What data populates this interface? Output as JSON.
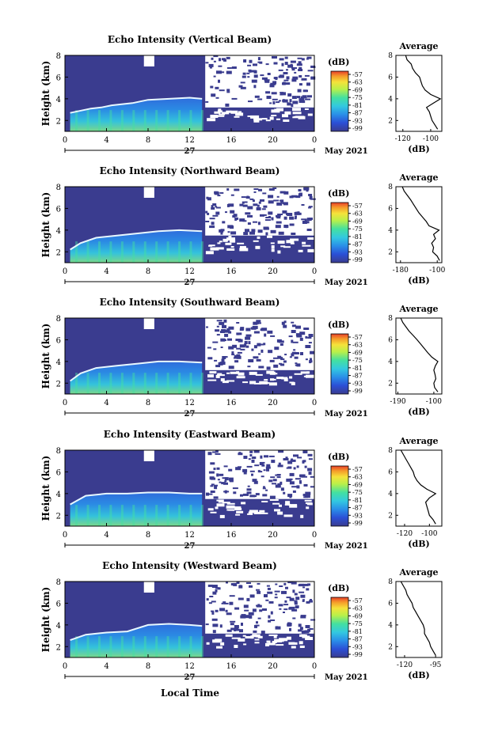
{
  "figure": {
    "xlabel": "Local Time",
    "date_label": "May 2021",
    "day_label": "27",
    "colorbar_unit": "(dB)",
    "colorbar_ticks": [
      "-57",
      "-63",
      "-69",
      "-75",
      "-81",
      "-87",
      "-93",
      "-99"
    ],
    "colorscale": [
      "#3a3c8f",
      "#2b4fd6",
      "#2a8fe8",
      "#33c9e0",
      "#44e0a0",
      "#b8f04a",
      "#f5e23a",
      "#f59a2a",
      "#e8402a"
    ],
    "background_color": "#3a3c8f"
  },
  "chart_data": [
    {
      "type": "heatmap",
      "title": "Echo Intensity (Vertical Beam)",
      "ylabel": "Height (km)",
      "x_ticks": [
        "0",
        "4",
        "8",
        "12",
        "16",
        "20",
        "0"
      ],
      "y_ticks": [
        "2",
        "4",
        "6",
        "8"
      ],
      "xlim": [
        0,
        24
      ],
      "ylim": [
        1,
        8
      ],
      "layer_height_km": [
        [
          0.5,
          2.7
        ],
        [
          2.5,
          3.1
        ],
        [
          3.5,
          3.2
        ],
        [
          4.5,
          3.4
        ],
        [
          6.5,
          3.6
        ],
        [
          8,
          3.9
        ],
        [
          10,
          4.0
        ],
        [
          12,
          4.1
        ],
        [
          13.2,
          4.0
        ]
      ],
      "average_profile": {
        "title": "Average",
        "xlabel": "(dB)",
        "x_ticks": [
          "-120",
          "-100"
        ],
        "y_ticks": [
          "2",
          "4",
          "6",
          "8"
        ],
        "xlim": [
          -125,
          -92
        ],
        "ylim": [
          1,
          8
        ],
        "height_km": [
          1.2,
          1.6,
          2.0,
          2.4,
          2.8,
          3.2,
          3.6,
          4.0,
          4.4,
          4.8,
          5.2,
          5.6,
          6.0,
          6.4,
          6.8,
          7.2,
          7.6,
          8.0
        ],
        "db": [
          -95,
          -97,
          -99,
          -100,
          -101,
          -103,
          -98,
          -93,
          -100,
          -104,
          -106,
          -107,
          -108,
          -111,
          -113,
          -114,
          -117,
          -118
        ]
      }
    },
    {
      "type": "heatmap",
      "title": "Echo Intensity (Northward Beam)",
      "ylabel": "Height (km)",
      "x_ticks": [
        "0",
        "4",
        "8",
        "12",
        "16",
        "20",
        "0"
      ],
      "y_ticks": [
        "2",
        "4",
        "6",
        "8"
      ],
      "xlim": [
        0,
        24
      ],
      "ylim": [
        1,
        8
      ],
      "layer_height_km": [
        [
          0.5,
          2.2
        ],
        [
          1.5,
          2.8
        ],
        [
          3,
          3.3
        ],
        [
          5,
          3.5
        ],
        [
          7,
          3.7
        ],
        [
          9,
          3.9
        ],
        [
          11,
          4.0
        ],
        [
          13.2,
          3.9
        ]
      ],
      "average_profile": {
        "title": "Average",
        "xlabel": "(dB)",
        "x_ticks": [
          "-180",
          "-100"
        ],
        "y_ticks": [
          "2",
          "4",
          "6",
          "8"
        ],
        "xlim": [
          -190,
          -90
        ],
        "ylim": [
          1,
          8
        ],
        "height_km": [
          1.2,
          1.6,
          2.0,
          2.4,
          2.8,
          3.2,
          3.6,
          4.0,
          4.4,
          4.8,
          5.2,
          5.6,
          6.0,
          6.4,
          6.8,
          7.2,
          7.6,
          8.0
        ],
        "db": [
          -95,
          -100,
          -110,
          -108,
          -112,
          -104,
          -108,
          -96,
          -118,
          -124,
          -132,
          -140,
          -146,
          -152,
          -158,
          -165,
          -172,
          -176
        ]
      }
    },
    {
      "type": "heatmap",
      "title": "Echo Intensity (Southward Beam)",
      "ylabel": "Height (km)",
      "x_ticks": [
        "0",
        "4",
        "8",
        "12",
        "16",
        "20",
        "0"
      ],
      "y_ticks": [
        "2",
        "4",
        "6",
        "8"
      ],
      "xlim": [
        0,
        24
      ],
      "ylim": [
        1,
        8
      ],
      "layer_height_km": [
        [
          0.5,
          2.2
        ],
        [
          1.5,
          2.9
        ],
        [
          3,
          3.4
        ],
        [
          5,
          3.6
        ],
        [
          7,
          3.8
        ],
        [
          9,
          4.0
        ],
        [
          11,
          4.0
        ],
        [
          13.2,
          3.9
        ]
      ],
      "average_profile": {
        "title": "Average",
        "xlabel": "(dB)",
        "x_ticks": [
          "-190",
          "-100"
        ],
        "y_ticks": [
          "2",
          "4",
          "6",
          "8"
        ],
        "xlim": [
          -195,
          -80
        ],
        "ylim": [
          1,
          8
        ],
        "height_km": [
          1.2,
          1.6,
          2.0,
          2.4,
          2.8,
          3.2,
          3.6,
          4.0,
          4.4,
          4.8,
          5.2,
          5.6,
          6.0,
          6.4,
          6.8,
          7.2,
          7.6,
          8.0
        ],
        "db": [
          -90,
          -98,
          -100,
          -95,
          -97,
          -100,
          -96,
          -90,
          -105,
          -115,
          -124,
          -133,
          -142,
          -152,
          -162,
          -170,
          -178,
          -183
        ]
      }
    },
    {
      "type": "heatmap",
      "title": "Echo Intensity (Eastward Beam)",
      "ylabel": "Height (km)",
      "x_ticks": [
        "0",
        "4",
        "8",
        "12",
        "16",
        "20",
        "0"
      ],
      "y_ticks": [
        "2",
        "4",
        "6",
        "8"
      ],
      "xlim": [
        0,
        24
      ],
      "ylim": [
        1,
        8
      ],
      "layer_height_km": [
        [
          0.5,
          3.0
        ],
        [
          2,
          3.8
        ],
        [
          4,
          4.0
        ],
        [
          6,
          4.0
        ],
        [
          8,
          4.1
        ],
        [
          10,
          4.1
        ],
        [
          12,
          4.0
        ],
        [
          13.2,
          4.0
        ]
      ],
      "average_profile": {
        "title": "Average",
        "xlabel": "(dB)",
        "x_ticks": [
          "-120",
          "-100"
        ],
        "y_ticks": [
          "2",
          "4",
          "6",
          "8"
        ],
        "xlim": [
          -127,
          -90
        ],
        "ylim": [
          1,
          8
        ],
        "height_km": [
          1.2,
          1.6,
          2.0,
          2.4,
          2.8,
          3.2,
          3.6,
          4.0,
          4.4,
          4.8,
          5.2,
          5.6,
          6.0,
          6.4,
          6.8,
          7.2,
          7.6,
          8.0
        ],
        "db": [
          -95,
          -97,
          -100,
          -101,
          -102,
          -103,
          -100,
          -95,
          -102,
          -107,
          -110,
          -112,
          -113,
          -115,
          -117,
          -119,
          -121,
          -123
        ]
      }
    },
    {
      "type": "heatmap",
      "title": "Echo Intensity (Westward Beam)",
      "ylabel": "Height (km)",
      "x_ticks": [
        "0",
        "4",
        "8",
        "12",
        "16",
        "20",
        "0"
      ],
      "y_ticks": [
        "2",
        "4",
        "6",
        "8"
      ],
      "xlim": [
        0,
        24
      ],
      "ylim": [
        1,
        8
      ],
      "layer_height_km": [
        [
          0.5,
          2.6
        ],
        [
          2,
          3.1
        ],
        [
          4,
          3.3
        ],
        [
          6,
          3.4
        ],
        [
          8,
          4.0
        ],
        [
          10,
          4.1
        ],
        [
          12,
          4.0
        ],
        [
          13.2,
          3.9
        ]
      ],
      "average_profile": {
        "title": "Average",
        "xlabel": "(dB)",
        "x_ticks": [
          "-120",
          "-95"
        ],
        "y_ticks": [
          "2",
          "4",
          "6",
          "8"
        ],
        "xlim": [
          -127,
          -90
        ],
        "ylim": [
          1,
          8
        ],
        "height_km": [
          1.2,
          1.6,
          2.0,
          2.4,
          2.8,
          3.2,
          3.6,
          4.0,
          4.4,
          4.8,
          5.2,
          5.6,
          6.0,
          6.4,
          6.8,
          7.2,
          7.6,
          8.0
        ],
        "db": [
          -95,
          -97,
          -99,
          -100,
          -102,
          -104,
          -104,
          -105,
          -107,
          -109,
          -111,
          -113,
          -114,
          -116,
          -118,
          -119,
          -121,
          -123
        ]
      }
    }
  ]
}
